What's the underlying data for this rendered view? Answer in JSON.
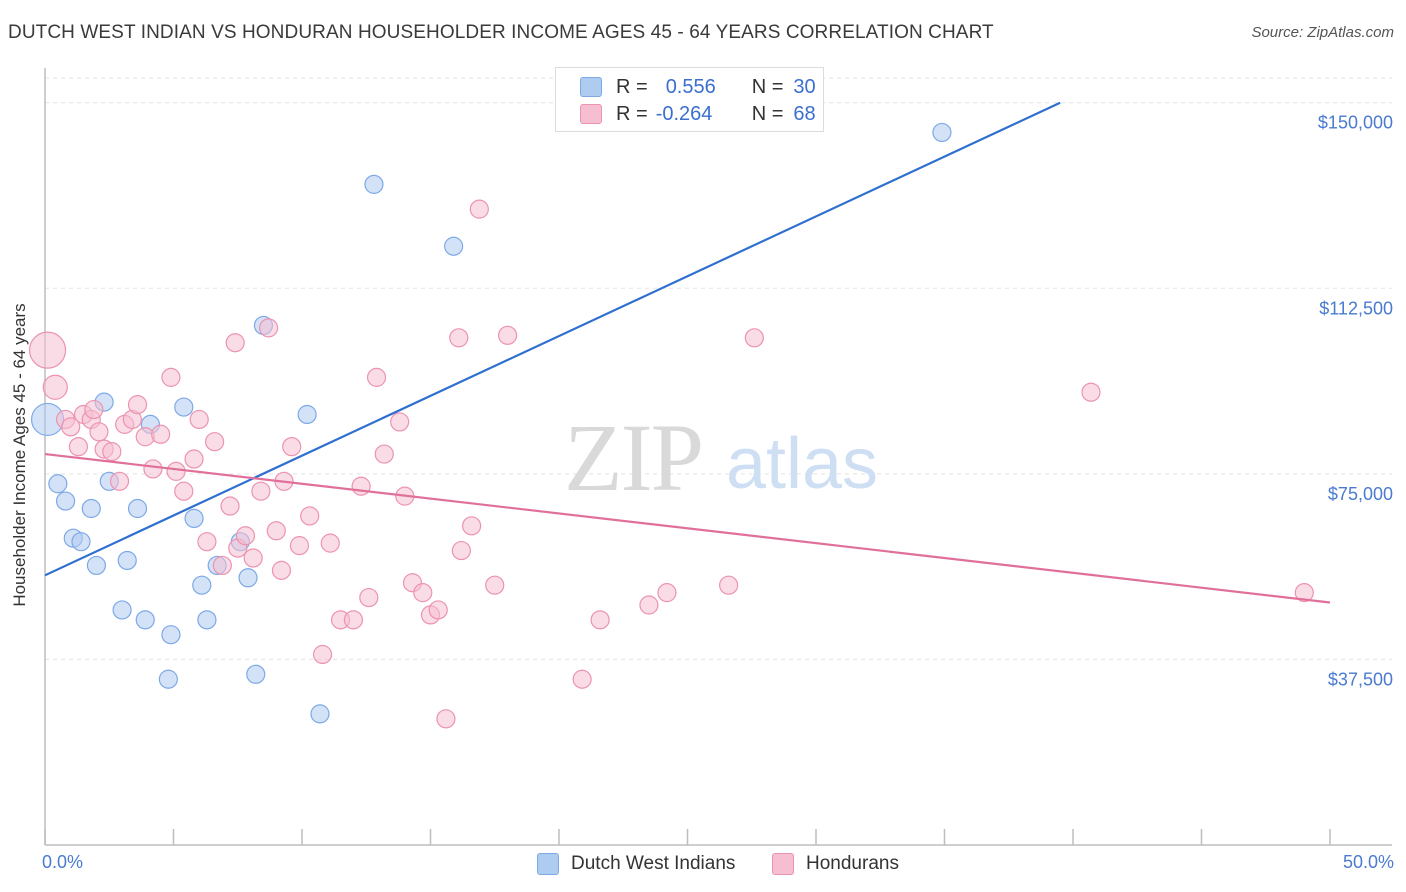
{
  "title": "DUTCH WEST INDIAN VS HONDURAN HOUSEHOLDER INCOME AGES 45 - 64 YEARS CORRELATION CHART",
  "source": "Source: ZipAtlas.com",
  "watermark": {
    "zip": "ZIP",
    "atlas": "atlas"
  },
  "legend": {
    "r_label": "R =",
    "n_label": "N =",
    "rows": [
      {
        "r": "0.556",
        "n": "30",
        "color": "#aecbf0"
      },
      {
        "r": "-0.264",
        "n": "68",
        "color": "#f6bfd1"
      }
    ]
  },
  "bottom_legend": [
    {
      "label": "Dutch West Indians",
      "color": "#aecbf0"
    },
    {
      "label": "Hondurans",
      "color": "#f6bfd1"
    }
  ],
  "x_axis": {
    "min_label": "0.0%",
    "max_label": "50.0%"
  },
  "chart_data": {
    "type": "scatter",
    "title": "DUTCH WEST INDIAN VS HONDURAN HOUSEHOLDER INCOME AGES 45 - 64 YEARS CORRELATION CHART",
    "xlabel": "",
    "ylabel": "Householder Income Ages 45 - 64 years",
    "xlim": [
      0,
      50
    ],
    "ylim": [
      0,
      155000
    ],
    "y_ticks": [
      37500,
      75000,
      112500,
      150000
    ],
    "y_tick_labels": [
      "$37,500",
      "$75,000",
      "$112,500",
      "$150,000"
    ],
    "grid": true,
    "series": [
      {
        "name": "Dutch West Indians",
        "color": "#aecbf0",
        "stroke": "#7da9e6",
        "line_color": "#2e6fd0",
        "trend": {
          "x": [
            0,
            39.5
          ],
          "y": [
            54500,
            150000
          ]
        },
        "points": [
          [
            0.1,
            86000,
            16
          ],
          [
            0.5,
            73000,
            9
          ],
          [
            0.8,
            69500,
            9
          ],
          [
            1.1,
            62000,
            9
          ],
          [
            1.4,
            61300,
            9
          ],
          [
            1.8,
            68000,
            9
          ],
          [
            2.0,
            56500,
            9
          ],
          [
            2.3,
            89500,
            9
          ],
          [
            2.5,
            73500,
            9
          ],
          [
            3.2,
            57500,
            9
          ],
          [
            3.6,
            68000,
            9
          ],
          [
            3.9,
            45500,
            9
          ],
          [
            4.1,
            85000,
            9
          ],
          [
            3.0,
            47500,
            9
          ],
          [
            4.8,
            33500,
            9
          ],
          [
            4.9,
            42500,
            9
          ],
          [
            5.4,
            88500,
            9
          ],
          [
            5.8,
            66000,
            9
          ],
          [
            6.1,
            52500,
            9
          ],
          [
            6.3,
            45500,
            9
          ],
          [
            6.7,
            56500,
            9
          ],
          [
            7.6,
            61300,
            9
          ],
          [
            7.9,
            54000,
            9
          ],
          [
            8.2,
            34500,
            9
          ],
          [
            8.5,
            105000,
            9
          ],
          [
            10.2,
            87000,
            9
          ],
          [
            10.7,
            26500,
            9
          ],
          [
            12.8,
            133500,
            9
          ],
          [
            15.9,
            121000,
            9
          ],
          [
            34.9,
            144000,
            9
          ]
        ]
      },
      {
        "name": "Hondurans",
        "color": "#f6bfd1",
        "stroke": "#ec93b0",
        "line_color": "#e0709a",
        "trend": {
          "x": [
            0,
            50
          ],
          "y": [
            79000,
            49000
          ]
        },
        "points": [
          [
            0.1,
            100000,
            18
          ],
          [
            0.4,
            92500,
            12
          ],
          [
            0.8,
            86000,
            9
          ],
          [
            1.0,
            84500,
            9
          ],
          [
            1.3,
            80500,
            9
          ],
          [
            1.5,
            87000,
            9
          ],
          [
            1.8,
            86000,
            9
          ],
          [
            2.1,
            83500,
            9
          ],
          [
            2.3,
            80000,
            9
          ],
          [
            2.6,
            79500,
            9
          ],
          [
            2.9,
            73500,
            9
          ],
          [
            3.1,
            85000,
            9
          ],
          [
            3.4,
            86000,
            9
          ],
          [
            3.6,
            89000,
            9
          ],
          [
            3.9,
            82500,
            9
          ],
          [
            4.2,
            76000,
            9
          ],
          [
            4.5,
            83000,
            9
          ],
          [
            4.9,
            94500,
            9
          ],
          [
            5.1,
            75500,
            9
          ],
          [
            5.4,
            71500,
            9
          ],
          [
            5.8,
            78000,
            9
          ],
          [
            6.0,
            86000,
            9
          ],
          [
            6.3,
            61300,
            9
          ],
          [
            6.6,
            81500,
            9
          ],
          [
            6.9,
            56500,
            9
          ],
          [
            7.2,
            68500,
            9
          ],
          [
            7.5,
            60000,
            9
          ],
          [
            7.8,
            62500,
            9
          ],
          [
            8.1,
            58000,
            9
          ],
          [
            8.4,
            71500,
            9
          ],
          [
            8.7,
            104500,
            9
          ],
          [
            9.0,
            63500,
            9
          ],
          [
            9.3,
            73500,
            9
          ],
          [
            9.6,
            80500,
            9
          ],
          [
            9.9,
            60500,
            9
          ],
          [
            10.3,
            66500,
            9
          ],
          [
            10.8,
            38500,
            9
          ],
          [
            11.1,
            61000,
            9
          ],
          [
            11.5,
            45500,
            9
          ],
          [
            12.0,
            45500,
            9
          ],
          [
            12.3,
            72500,
            9
          ],
          [
            12.6,
            50000,
            9
          ],
          [
            12.9,
            94500,
            9
          ],
          [
            13.2,
            79000,
            9
          ],
          [
            13.8,
            85500,
            9
          ],
          [
            14.0,
            70500,
            9
          ],
          [
            14.3,
            53000,
            9
          ],
          [
            14.7,
            51000,
            9
          ],
          [
            15.0,
            46500,
            9
          ],
          [
            15.3,
            47500,
            9
          ],
          [
            15.6,
            25500,
            9
          ],
          [
            16.1,
            102500,
            9
          ],
          [
            16.2,
            59500,
            9
          ],
          [
            16.6,
            64500,
            9
          ],
          [
            16.9,
            128500,
            9
          ],
          [
            17.5,
            52500,
            9
          ],
          [
            18.0,
            103000,
            9
          ],
          [
            9.2,
            55500,
            9
          ],
          [
            20.9,
            33500,
            9
          ],
          [
            21.6,
            45500,
            9
          ],
          [
            23.5,
            48500,
            9
          ],
          [
            24.2,
            51000,
            9
          ],
          [
            26.6,
            52500,
            9
          ],
          [
            27.6,
            102500,
            9
          ],
          [
            40.7,
            91500,
            9
          ],
          [
            7.4,
            101500,
            9
          ],
          [
            1.9,
            88000,
            9
          ],
          [
            49.0,
            51000,
            9
          ]
        ]
      }
    ]
  }
}
